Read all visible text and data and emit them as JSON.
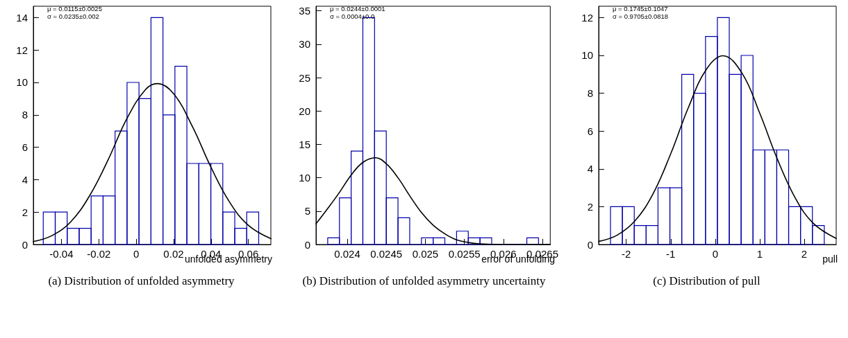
{
  "chart_data": [
    {
      "type": "histogram",
      "title": "(a) Distribution of unfolded asymmetry",
      "xlabel": "unfolded asymmetry",
      "annotations": [
        "μ = 0.0115±0.0025",
        "σ = 0.0235±0.002"
      ],
      "xlim": [
        -0.055,
        0.072
      ],
      "xticks": [
        -0.04,
        -0.02,
        0,
        0.02,
        0.04,
        0.06
      ],
      "ylim": [
        0,
        14.7
      ],
      "yticks": [
        0,
        2,
        4,
        6,
        8,
        10,
        12,
        14
      ],
      "grid": false,
      "series": [
        {
          "color": "#0000aa",
          "bins": [
            -0.0497,
            -0.0433,
            -0.0369,
            -0.0305,
            -0.0241,
            -0.0177,
            -0.0113,
            -0.0049,
            0.0015,
            0.0079,
            0.0143,
            0.0207,
            0.0271,
            0.0335,
            0.0399,
            0.0463,
            0.0527,
            0.0591,
            0.0655
          ],
          "values": [
            2,
            2,
            1,
            1,
            3,
            3,
            7,
            10,
            9,
            14,
            8,
            11,
            5,
            5,
            5,
            2,
            1,
            2
          ]
        },
        {
          "type": "line",
          "color": "#000000",
          "x": [
            -0.055,
            -0.045,
            -0.035,
            -0.025,
            -0.015,
            -0.005,
            0.005,
            0.0115,
            0.02,
            0.03,
            0.04,
            0.05,
            0.06,
            0.072
          ],
          "values": [
            0.18,
            0.55,
            1.4,
            2.99,
            5.23,
            7.76,
            9.56,
            9.93,
            9.3,
            7.29,
            4.76,
            2.6,
            1.18,
            0.36
          ]
        }
      ]
    },
    {
      "type": "histogram",
      "title": "(b) Distribution of unfolded asymmetry uncertainty",
      "xlabel": "error of unfolding",
      "annotations": [
        "μ = 0.0244±0.0001",
        "σ = 0.0004±0.0"
      ],
      "xlim": [
        0.0236,
        0.0266
      ],
      "xticks": [
        0.024,
        0.0245,
        0.025,
        0.0255,
        0.026,
        0.0265
      ],
      "ylim": [
        0,
        35.7
      ],
      "yticks": [
        0,
        5,
        10,
        15,
        20,
        25,
        30,
        35
      ],
      "grid": false,
      "series": [
        {
          "color": "#0000aa",
          "bins": [
            0.02375,
            0.0239,
            0.02405,
            0.0242,
            0.02435,
            0.0245,
            0.02465,
            0.0248,
            0.02495,
            0.0251,
            0.02525,
            0.0254,
            0.02555,
            0.0257,
            0.02585,
            0.026,
            0.02615,
            0.0263,
            0.02645
          ],
          "values": [
            1,
            7,
            14,
            34,
            17,
            7,
            4,
            0,
            1,
            1,
            0,
            2,
            1,
            1,
            0,
            0,
            0,
            1
          ]
        },
        {
          "type": "line",
          "color": "#000000",
          "x": [
            0.0236,
            0.02375,
            0.0239,
            0.02405,
            0.0242,
            0.02436,
            0.0245,
            0.02465,
            0.0248,
            0.02495,
            0.0251,
            0.02525,
            0.0254,
            0.02555,
            0.0257,
            0.026,
            0.0266
          ],
          "values": [
            3.1,
            5.4,
            7.8,
            10.4,
            12.3,
            13,
            12.1,
            10,
            7.3,
            4.8,
            2.9,
            1.6,
            0.7,
            0.3,
            0.1,
            0,
            0
          ]
        }
      ]
    },
    {
      "type": "histogram",
      "title": "(c) Distribution of pull",
      "xlabel": "pull",
      "annotations": [
        "μ = 0.1745±0.1047",
        "σ = 0.9705±0.0818"
      ],
      "xlim": [
        -2.62,
        2.72
      ],
      "xticks": [
        -2,
        -1,
        0,
        1,
        2
      ],
      "ylim": [
        0,
        12.6
      ],
      "yticks": [
        0,
        2,
        4,
        6,
        8,
        10,
        12
      ],
      "grid": false,
      "series": [
        {
          "color": "#0000aa",
          "bins": [
            -2.354,
            -2.087,
            -1.82,
            -1.553,
            -1.286,
            -1.019,
            -0.752,
            -0.485,
            -0.218,
            0.049,
            0.316,
            0.583,
            0.85,
            1.117,
            1.384,
            1.651,
            1.918,
            2.185,
            2.452
          ],
          "values": [
            2,
            2,
            1,
            1,
            3,
            3,
            9,
            8,
            11,
            12,
            9,
            10,
            5,
            5,
            5,
            2,
            2,
            1
          ]
        },
        {
          "type": "line",
          "color": "#000000",
          "x": [
            -2.62,
            -2.2,
            -1.8,
            -1.4,
            -1,
            -0.6,
            -0.2,
            0.1745,
            0.6,
            1,
            1.4,
            1.8,
            2.2,
            2.72
          ],
          "values": [
            0.16,
            0.5,
            1.26,
            2.67,
            4.8,
            7.26,
            9.26,
            9.98,
            9.07,
            6.95,
            4.5,
            2.46,
            1.13,
            0.32
          ]
        }
      ]
    }
  ]
}
